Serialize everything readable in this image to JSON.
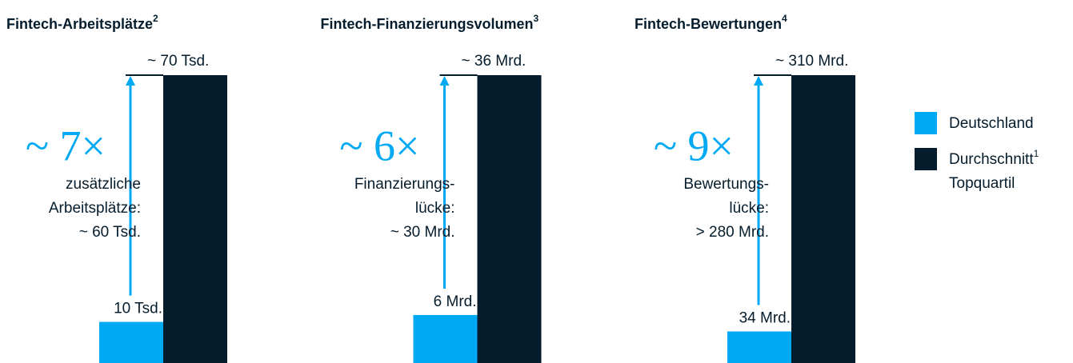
{
  "series": [
    {
      "name": "Deutschland",
      "color": "#00a9f4"
    },
    {
      "name": "Durchschnitt",
      "note": "1",
      "name_cont": "Topquartil",
      "color": "#051c2c"
    }
  ],
  "chart_data": [
    {
      "type": "bar",
      "title": "Fintech-Arbeitsplätze",
      "title_note": "2",
      "values": [
        10,
        70
      ],
      "value_labels": [
        "10 Tsd.",
        "~ 70 Tsd."
      ],
      "ylim": [
        0,
        70
      ],
      "multiplier": "~ 7×",
      "annotation": [
        "zusätzliche",
        "Arbeitsplätze:",
        "~ 60 Tsd."
      ]
    },
    {
      "type": "bar",
      "title": "Fintech-Finanzierungsvolumen",
      "title_note": "3",
      "values": [
        6,
        36
      ],
      "value_labels": [
        "6 Mrd.",
        "~ 36 Mrd."
      ],
      "ylim": [
        0,
        36
      ],
      "multiplier": "~ 6×",
      "annotation": [
        "Finanzierungs-",
        "lücke:",
        "~ 30 Mrd."
      ]
    },
    {
      "type": "bar",
      "title": "Fintech-Bewertungen",
      "title_note": "4",
      "values": [
        34,
        310
      ],
      "value_labels": [
        "34 Mrd.",
        "~ 310 Mrd."
      ],
      "ylim": [
        0,
        310
      ],
      "multiplier": "~ 9×",
      "annotation": [
        "Bewertungs-",
        "lücke:",
        "> 280 Mrd."
      ]
    }
  ]
}
